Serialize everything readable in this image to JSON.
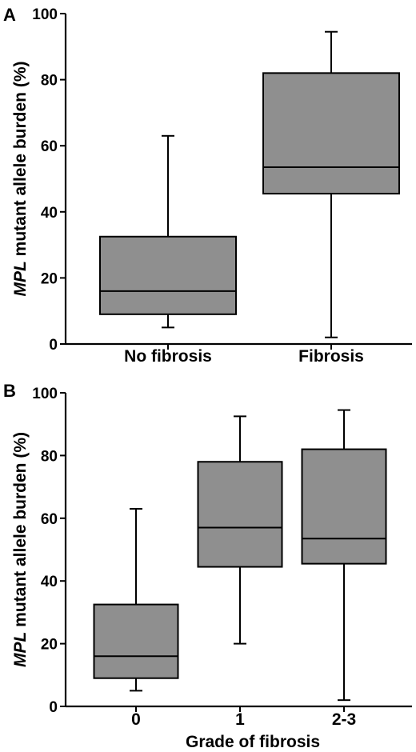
{
  "chart_data": [
    {
      "type": "box",
      "panel_label": "A",
      "ylabel_italic": "MPL",
      "ylabel_rest": " mutant allele burden (%)",
      "xlabel": "",
      "ylim": [
        0,
        100
      ],
      "yticks": [
        0,
        20,
        40,
        60,
        80,
        100
      ],
      "grid": false,
      "categories": [
        "No fibrosis",
        "Fibrosis"
      ],
      "boxes": [
        {
          "category": "No fibrosis",
          "min": 5,
          "q1": 9,
          "median": 16,
          "q3": 32.5,
          "max": 63
        },
        {
          "category": "Fibrosis",
          "min": 2,
          "q1": 45.5,
          "median": 53.5,
          "q3": 82,
          "max": 94.5
        }
      ],
      "box_color": "#8f8f8f"
    },
    {
      "type": "box",
      "panel_label": "B",
      "ylabel_italic": "MPL",
      "ylabel_rest": " mutant allele burden (%)",
      "xlabel": "Grade of fibrosis",
      "ylim": [
        0,
        100
      ],
      "yticks": [
        0,
        20,
        40,
        60,
        80,
        100
      ],
      "grid": false,
      "categories": [
        "0",
        "1",
        "2-3"
      ],
      "boxes": [
        {
          "category": "0",
          "min": 5,
          "q1": 9,
          "median": 16,
          "q3": 32.5,
          "max": 63
        },
        {
          "category": "1",
          "min": 20,
          "q1": 44.5,
          "median": 57,
          "q3": 78,
          "max": 92.5
        },
        {
          "category": "2-3",
          "min": 2,
          "q1": 45.5,
          "median": 53.5,
          "q3": 82,
          "max": 94.5
        }
      ],
      "box_color": "#8f8f8f"
    }
  ]
}
